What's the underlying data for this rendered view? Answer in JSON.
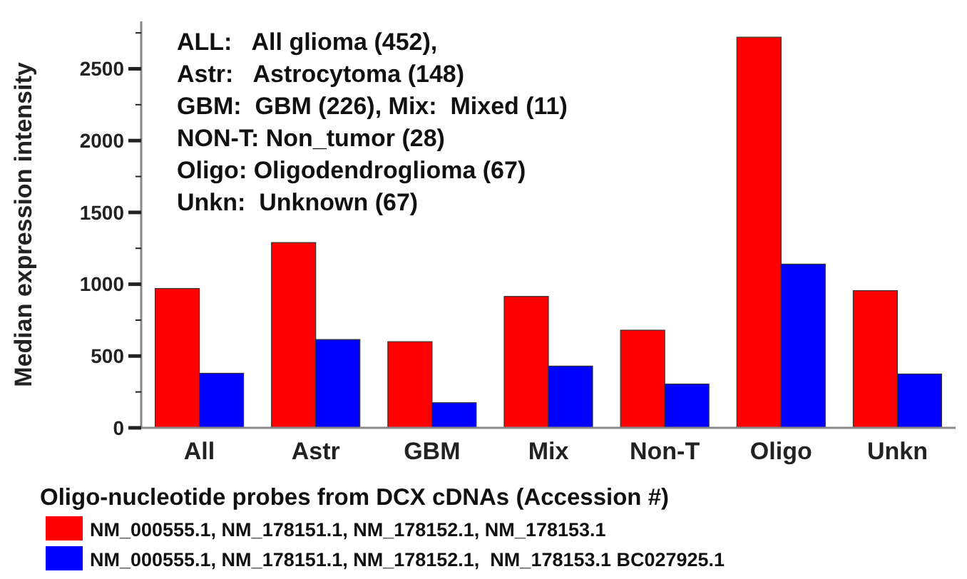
{
  "chart_data": {
    "type": "bar",
    "ylabel": "Median expression intensity",
    "legend_title": "Oligo-nucleotide probes from DCX cDNAs (Accession #)",
    "categories": [
      "All",
      "Astr",
      "GBM",
      "Mix",
      "Non-T",
      "Oligo",
      "Unkn"
    ],
    "series": [
      {
        "name": "NM_000555.1, NM_178151.1, NM_178152.1, NM_178153.1",
        "color": "#ff0000",
        "values": [
          970,
          1290,
          600,
          915,
          680,
          2720,
          955
        ]
      },
      {
        "name": "NM_000555.1, NM_178151.1, NM_178152.1,  NM_178153.1 BC027925.1",
        "color": "#0000ff",
        "values": [
          380,
          615,
          175,
          430,
          305,
          1140,
          375
        ]
      }
    ],
    "ylim": [
      0,
      2830
    ],
    "yticks": [
      0,
      {
        "value": 250,
        "label": null
      },
      500,
      {
        "value": 750,
        "label": null
      },
      1000,
      {
        "value": 1250,
        "label": null
      },
      1500,
      {
        "value": 1750,
        "label": null
      },
      2000,
      {
        "value": 2250,
        "label": null
      },
      2500,
      {
        "value": 2750,
        "label": null
      }
    ],
    "annotations": [
      "ALL:   All glioma (452),",
      "Astr:   Astrocytoma (148)",
      "GBM:  GBM (226), Mix:  Mixed (11)",
      "NON-T: Non_tumor (28)",
      "Oligo: Oligodendroglioma (67)",
      "Unkn:  Unknown (67)"
    ],
    "legend": "bottom",
    "grid": false
  }
}
